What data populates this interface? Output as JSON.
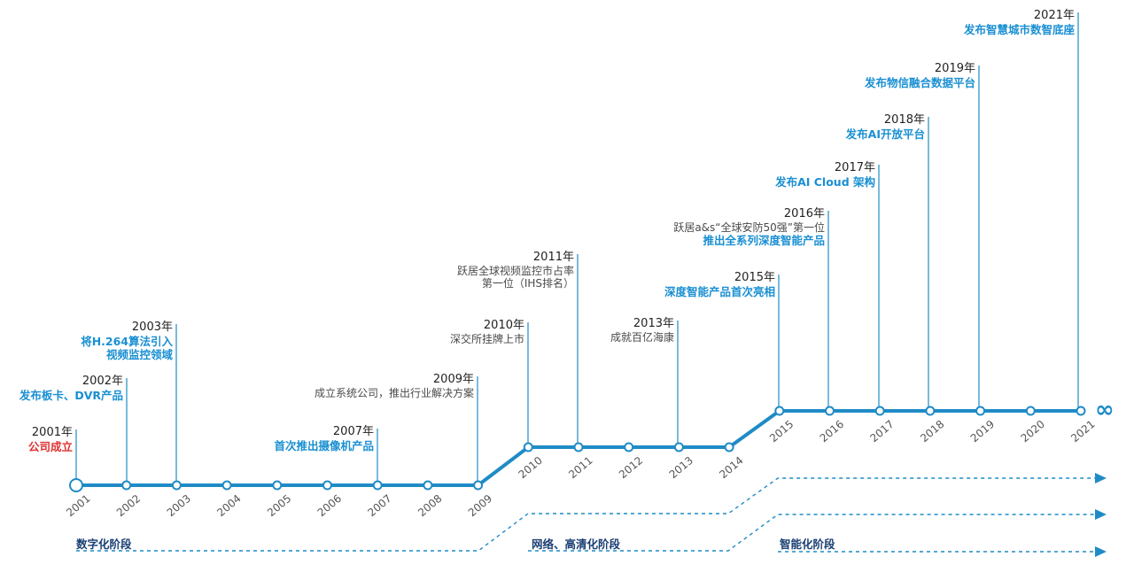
{
  "colors": {
    "line": "#1f8bc6",
    "highlight": "#1a8fd2",
    "founding": "#e03030",
    "stage": "#1a3e73",
    "year_text": "#222222",
    "plain_text": "#4a4a4a",
    "axis_text": "#555555"
  },
  "axis_years": [
    "2001",
    "2002",
    "2003",
    "2004",
    "2005",
    "2006",
    "2007",
    "2008",
    "2009",
    "2010",
    "2011",
    "2012",
    "2013",
    "2014",
    "2015",
    "2016",
    "2017",
    "2018",
    "2019",
    "2020",
    "2021"
  ],
  "milestones": [
    {
      "year": "2001年",
      "lines": [
        {
          "text": "公司成立",
          "style": "founding"
        }
      ]
    },
    {
      "year": "2002年",
      "lines": [
        {
          "text": "发布板卡、DVR产品",
          "style": "highlight"
        }
      ]
    },
    {
      "year": "2003年",
      "lines": [
        {
          "text": "将H.264算法引入",
          "style": "highlight"
        },
        {
          "text": "视频监控领域",
          "style": "highlight"
        }
      ]
    },
    {
      "year": "2007年",
      "lines": [
        {
          "text": "首次推出摄像机产品",
          "style": "highlight"
        }
      ]
    },
    {
      "year": "2009年",
      "lines": [
        {
          "text": "成立系统公司，推出行业解决方案",
          "style": "plain"
        }
      ]
    },
    {
      "year": "2010年",
      "lines": [
        {
          "text": "深交所挂牌上市",
          "style": "plain"
        }
      ]
    },
    {
      "year": "2011年",
      "lines": [
        {
          "text": "跃居全球视频监控市占率",
          "style": "plain"
        },
        {
          "text": "第一位（IHS排名）",
          "style": "plain"
        }
      ]
    },
    {
      "year": "2013年",
      "lines": [
        {
          "text": "成就百亿海康",
          "style": "plain"
        }
      ]
    },
    {
      "year": "2015年",
      "lines": [
        {
          "text": "深度智能产品首次亮相",
          "style": "highlight"
        }
      ]
    },
    {
      "year": "2016年",
      "lines": [
        {
          "text": "跃居a&s“全球安防50强”第一位",
          "style": "plain"
        },
        {
          "text": "推出全系列深度智能产品",
          "style": "highlight"
        }
      ]
    },
    {
      "year": "2017年",
      "lines": [
        {
          "text": "发布AI Cloud 架构",
          "style": "highlight"
        }
      ]
    },
    {
      "year": "2018年",
      "lines": [
        {
          "text": "发布AI开放平台",
          "style": "highlight"
        }
      ]
    },
    {
      "year": "2019年",
      "lines": [
        {
          "text": "发布物信融合数据平台",
          "style": "highlight"
        }
      ]
    },
    {
      "year": "2021年",
      "lines": [
        {
          "text": "发布智慧城市数智底座",
          "style": "highlight"
        }
      ]
    }
  ],
  "stages": [
    {
      "label": "数字化阶段"
    },
    {
      "label": "网络、高清化阶段"
    },
    {
      "label": "智能化阶段"
    }
  ],
  "infinity": "∞"
}
